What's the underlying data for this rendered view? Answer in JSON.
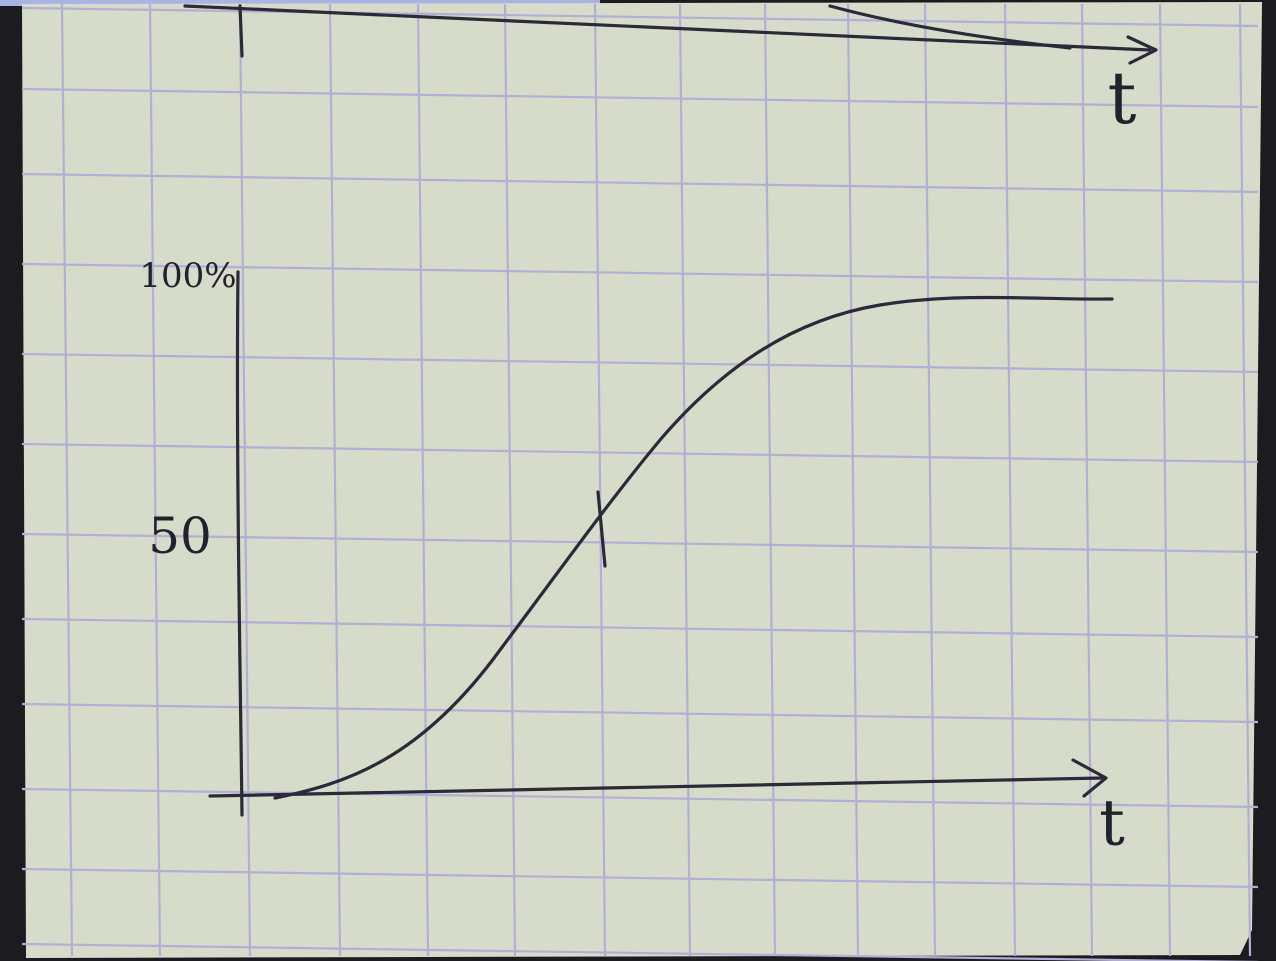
{
  "upper_sketch": {
    "axis_label": "t"
  },
  "lower_sketch": {
    "y_labels": [
      "100%",
      "50"
    ],
    "axis_label": "t"
  }
}
